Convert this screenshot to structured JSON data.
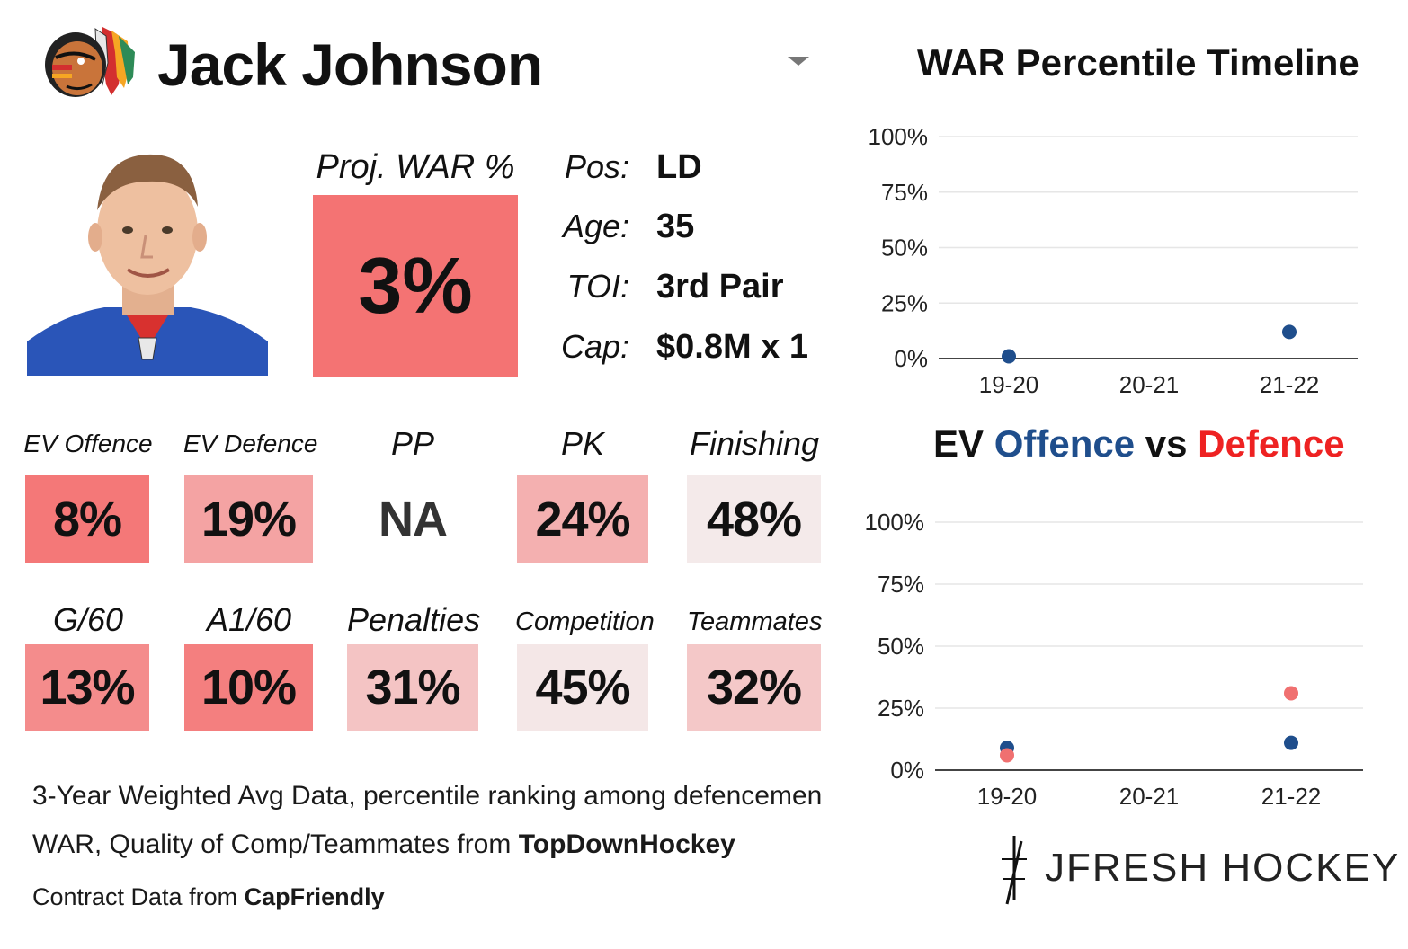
{
  "player": {
    "name": "Jack Johnson"
  },
  "proj": {
    "label": "Proj. WAR %",
    "value": "3%",
    "color": "#f47373"
  },
  "info": [
    {
      "label": "Pos:",
      "value": "LD"
    },
    {
      "label": "Age:",
      "value": "35"
    },
    {
      "label": "TOI:",
      "value": "3rd Pair"
    },
    {
      "label": "Cap:",
      "value": "$0.8M x 1"
    }
  ],
  "stats_row1": [
    {
      "label": "EV Offence",
      "value": "8%",
      "color": "#f47878"
    },
    {
      "label": "EV Defence",
      "value": "19%",
      "color": "#f4a3a3"
    },
    {
      "label": "PP",
      "value": "NA",
      "color": "#ffffff"
    },
    {
      "label": "PK",
      "value": "24%",
      "color": "#f4b0b0"
    },
    {
      "label": "Finishing",
      "value": "48%",
      "color": "#f4eaea"
    }
  ],
  "stats_row2": [
    {
      "label": "G/60",
      "value": "13%",
      "color": "#f48c8c"
    },
    {
      "label": "A1/60",
      "value": "10%",
      "color": "#f47f7f"
    },
    {
      "label": "Penalties",
      "value": "31%",
      "color": "#f4c4c4"
    },
    {
      "label": "Competition",
      "value": "45%",
      "color": "#f4e7e7"
    },
    {
      "label": "Teammates",
      "value": "32%",
      "color": "#f4c8c8"
    }
  ],
  "footer": {
    "line1": "3-Year Weighted Avg Data, percentile ranking among defencemen",
    "line2_prefix": "WAR, Quality of Comp/Teammates from ",
    "line2_source": "TopDownHockey",
    "line3_prefix": "Contract Data from ",
    "line3_source": "CapFriendly"
  },
  "brand": {
    "text": "JFRESH HOCKEY"
  },
  "chart_data": [
    {
      "type": "scatter",
      "title": "WAR Percentile Timeline",
      "categories": [
        "19-20",
        "20-21",
        "21-22"
      ],
      "yticks": [
        "0%",
        "25%",
        "50%",
        "75%",
        "100%"
      ],
      "ylim": [
        0,
        100
      ],
      "grid": true,
      "series": [
        {
          "color": "#1f4e8c",
          "values": [
            1,
            null,
            12
          ]
        }
      ]
    },
    {
      "type": "scatter",
      "title_parts": [
        "EV ",
        "Offence",
        " vs ",
        "Defence"
      ],
      "title_colors": [
        "#111111",
        "#1f4e8c",
        "#111111",
        "#ee2222"
      ],
      "categories": [
        "19-20",
        "20-21",
        "21-22"
      ],
      "yticks": [
        "0%",
        "25%",
        "50%",
        "75%",
        "100%"
      ],
      "ylim": [
        0,
        100
      ],
      "grid": true,
      "series": [
        {
          "name": "Offence",
          "color": "#1f4e8c",
          "values": [
            9,
            null,
            11
          ]
        },
        {
          "name": "Defence",
          "color": "#f07070",
          "values": [
            6,
            null,
            31
          ]
        }
      ]
    }
  ]
}
